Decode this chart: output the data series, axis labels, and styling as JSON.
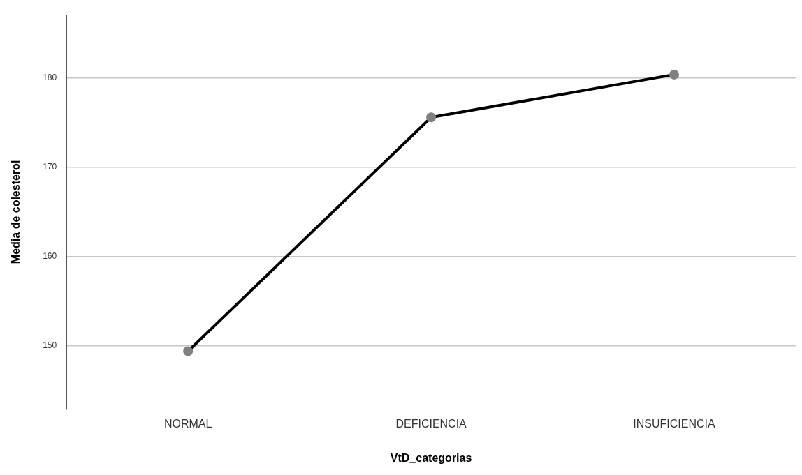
{
  "chart_data": {
    "type": "line",
    "xlabel": "VtD_categorias",
    "ylabel": "Media de colesterol",
    "categories": [
      "NORMAL",
      "DEFICIENCIA",
      "INSUFICIENCIA"
    ],
    "series": [
      {
        "color": "#000000",
        "colors": [
          "#808080",
          "#808080",
          "#808080"
        ],
        "values": [
          149.4,
          175.6,
          180.4
        ]
      }
    ],
    "ylim": [
      142.9,
      187.1
    ],
    "yticks": [
      150,
      160,
      170,
      180
    ],
    "grid": "y",
    "legend": false,
    "marker": "circle",
    "line_style": "solid"
  }
}
